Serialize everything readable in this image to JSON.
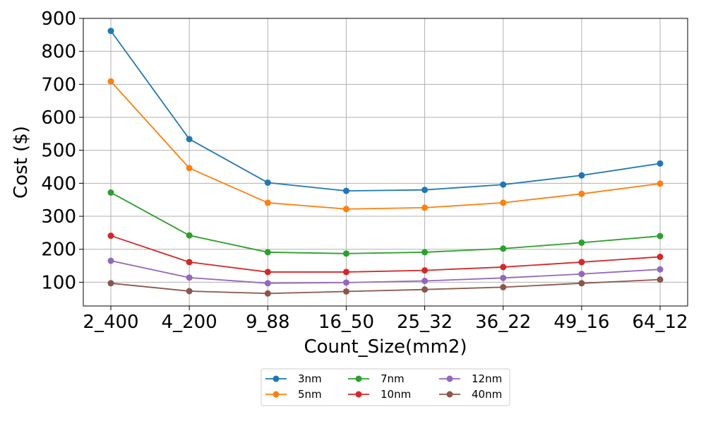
{
  "chart_data": {
    "type": "line",
    "title": "",
    "xlabel": "Count_Size(mm2)",
    "ylabel": "Cost ($)",
    "categories": [
      "2_400",
      "4_200",
      "9_88",
      "16_50",
      "25_32",
      "36_22",
      "49_16",
      "64_12"
    ],
    "ylim": [
      28,
      900
    ],
    "yticks": [
      100,
      200,
      300,
      400,
      500,
      600,
      700,
      800,
      900
    ],
    "grid": true,
    "legend_position": "bottom-center",
    "legend_columns": 3,
    "marker": "circle",
    "series": [
      {
        "name": "3nm",
        "color": "#1f77b4",
        "values": [
          862,
          534,
          402,
          377,
          380,
          396,
          424,
          460
        ]
      },
      {
        "name": "5nm",
        "color": "#ff7f0e",
        "values": [
          709,
          446,
          341,
          322,
          326,
          341,
          368,
          399
        ]
      },
      {
        "name": "7nm",
        "color": "#2ca02c",
        "values": [
          372,
          242,
          191,
          187,
          191,
          202,
          220,
          240
        ]
      },
      {
        "name": "10nm",
        "color": "#d62728",
        "values": [
          241,
          161,
          131,
          131,
          136,
          146,
          161,
          177
        ]
      },
      {
        "name": "12nm",
        "color": "#9467bd",
        "values": [
          165,
          114,
          97,
          99,
          104,
          113,
          125,
          139
        ]
      },
      {
        "name": "40nm",
        "color": "#8c564b",
        "values": [
          97,
          73,
          66,
          72,
          78,
          85,
          97,
          108
        ]
      }
    ]
  }
}
